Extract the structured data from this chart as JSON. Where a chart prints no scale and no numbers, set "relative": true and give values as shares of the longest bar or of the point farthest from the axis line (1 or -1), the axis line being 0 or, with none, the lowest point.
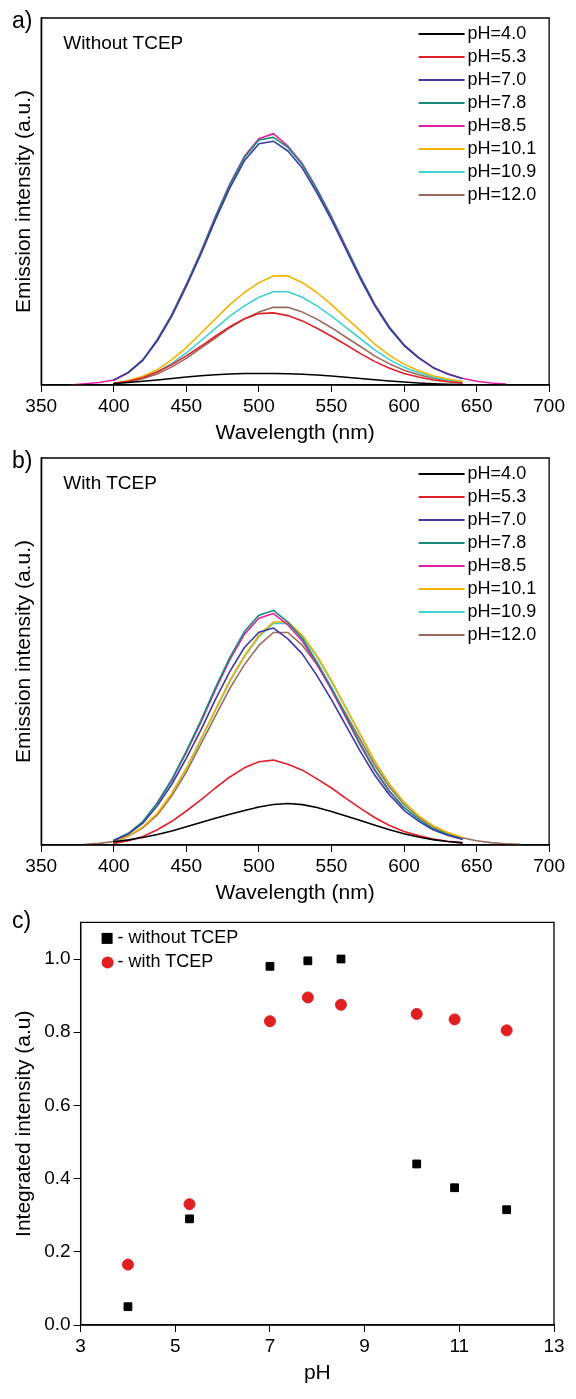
{
  "chart_data": [
    {
      "type": "line",
      "title": "Without TCEP",
      "annotations": [
        "a)"
      ],
      "xlabel": "Wavelength (nm)",
      "ylabel": "Emission intensity (a.u.)",
      "relative": true,
      "legend": "top right",
      "marker": "none",
      "line_style": "solid",
      "grid": false,
      "xlim": [
        350,
        700
      ],
      "xticks": [
        350,
        400,
        450,
        500,
        550,
        600,
        650,
        700
      ],
      "x": [
        370,
        380,
        390,
        400,
        410,
        420,
        430,
        440,
        450,
        460,
        470,
        480,
        490,
        500,
        510,
        520,
        530,
        540,
        550,
        560,
        570,
        580,
        590,
        600,
        610,
        620,
        630,
        640,
        650,
        660,
        670
      ],
      "series": [
        {
          "name": "pH=4.0",
          "color": "#000000",
          "values": [
            null,
            null,
            null,
            0.006,
            0.01,
            0.015,
            0.02,
            0.026,
            0.032,
            0.037,
            0.041,
            0.044,
            0.046,
            0.046,
            0.046,
            0.045,
            0.043,
            0.04,
            0.036,
            0.031,
            0.026,
            0.021,
            0.016,
            0.012,
            0.008,
            0.005,
            0.003,
            0.002,
            null,
            null,
            null
          ]
        },
        {
          "name": "pH=5.3",
          "color": "#e0202a",
          "values": [
            null,
            null,
            null,
            0.006,
            0.015,
            0.029,
            0.052,
            0.081,
            0.116,
            0.154,
            0.194,
            0.232,
            0.264,
            0.284,
            0.287,
            0.276,
            0.255,
            0.226,
            0.194,
            0.16,
            0.125,
            0.093,
            0.067,
            0.046,
            0.032,
            0.02,
            0.013,
            0.008,
            null,
            null,
            null
          ]
        },
        {
          "name": "pH=7.0",
          "color": "#3a3aa0",
          "values": [
            null,
            null,
            null,
            0.02,
            0.049,
            0.098,
            0.176,
            0.274,
            0.392,
            0.519,
            0.657,
            0.784,
            0.892,
            0.96,
            0.97,
            0.931,
            0.862,
            0.764,
            0.657,
            0.539,
            0.421,
            0.314,
            0.225,
            0.157,
            0.108,
            0.069,
            0.044,
            0.026,
            null,
            null,
            null
          ]
        },
        {
          "name": "pH=7.8",
          "color": "#1a8a7a",
          "values": [
            null,
            null,
            null,
            null,
            0.05,
            0.1,
            0.179,
            0.279,
            0.398,
            0.527,
            0.667,
            0.796,
            0.905,
            0.975,
            0.985,
            0.945,
            0.876,
            0.776,
            0.667,
            0.547,
            0.428,
            0.318,
            0.229,
            0.159,
            0.109,
            null,
            null,
            null,
            null,
            null,
            null
          ]
        },
        {
          "name": "pH=8.5",
          "color": "#e020a0",
          "values": [
            0,
            0.005,
            0.01,
            0.02,
            0.05,
            0.1,
            0.18,
            0.28,
            0.4,
            0.53,
            0.67,
            0.8,
            0.91,
            0.98,
            1.0,
            0.95,
            0.88,
            0.78,
            0.67,
            0.55,
            0.43,
            0.32,
            0.23,
            0.16,
            0.11,
            0.07,
            0.045,
            0.027,
            0.015,
            0.008,
            0.004
          ]
        },
        {
          "name": "pH=10.1",
          "color": "#f0b400",
          "values": [
            null,
            null,
            null,
            0.007,
            0.018,
            0.035,
            0.061,
            0.101,
            0.149,
            0.206,
            0.263,
            0.32,
            0.368,
            0.407,
            0.434,
            0.434,
            0.407,
            0.368,
            0.32,
            0.267,
            0.215,
            0.162,
            0.118,
            0.083,
            0.057,
            0.037,
            0.024,
            0.015,
            null,
            null,
            null
          ]
        },
        {
          "name": "pH=10.9",
          "color": "#40d0d0",
          "values": [
            null,
            null,
            null,
            null,
            null,
            0.03,
            0.053,
            0.086,
            0.128,
            0.176,
            0.225,
            0.274,
            0.315,
            0.349,
            0.371,
            0.371,
            0.349,
            0.315,
            0.274,
            0.229,
            0.184,
            0.139,
            0.101,
            0.071,
            0.049,
            0.032,
            0.021,
            0.013,
            null,
            null,
            null
          ]
        },
        {
          "name": "pH=12.0",
          "color": "#9a6a5a",
          "values": [
            null,
            null,
            null,
            0.005,
            0.012,
            0.025,
            0.044,
            0.072,
            0.106,
            0.147,
            0.187,
            0.228,
            0.262,
            0.29,
            0.309,
            0.309,
            0.29,
            0.262,
            0.228,
            0.19,
            0.153,
            0.115,
            0.084,
            0.059,
            0.041,
            0.027,
            0.017,
            0.011,
            null,
            null,
            null
          ]
        }
      ]
    },
    {
      "type": "line",
      "title": "With TCEP",
      "annotations": [
        "b)"
      ],
      "xlabel": "Wavelength (nm)",
      "ylabel": "Emission intensity (a.u.)",
      "relative": true,
      "legend": "top right",
      "marker": "none",
      "line_style": "solid",
      "grid": false,
      "xlim": [
        350,
        700
      ],
      "xticks": [
        350,
        400,
        450,
        500,
        550,
        600,
        650,
        700
      ],
      "x": [
        380,
        390,
        400,
        410,
        420,
        430,
        440,
        450,
        460,
        470,
        480,
        490,
        500,
        510,
        520,
        530,
        540,
        550,
        560,
        570,
        580,
        590,
        600,
        610,
        620,
        630,
        640,
        650,
        660,
        670,
        680
      ],
      "series": [
        {
          "name": "pH=4.0",
          "color": "#000000",
          "values": [
            null,
            null,
            0.014,
            0.022,
            0.032,
            0.045,
            0.06,
            0.078,
            0.096,
            0.114,
            0.131,
            0.147,
            0.162,
            0.173,
            0.177,
            0.172,
            0.16,
            0.143,
            0.124,
            0.104,
            0.084,
            0.065,
            0.048,
            0.034,
            0.023,
            0.015,
            0.009,
            null,
            null,
            null,
            null
          ]
        },
        {
          "name": "pH=5.3",
          "color": "#e0202a",
          "values": [
            null,
            null,
            0.007,
            0.018,
            0.036,
            0.065,
            0.101,
            0.145,
            0.192,
            0.243,
            0.29,
            0.329,
            0.355,
            0.362,
            0.344,
            0.319,
            0.282,
            0.243,
            0.199,
            0.156,
            0.116,
            0.083,
            0.058,
            0.04,
            0.025,
            0.016,
            0.01,
            null,
            null,
            null,
            null
          ]
        },
        {
          "name": "pH=7.0",
          "color": "#3a3aa0",
          "values": [
            null,
            null,
            0.019,
            0.046,
            0.093,
            0.167,
            0.259,
            0.37,
            0.49,
            0.62,
            0.74,
            0.842,
            0.907,
            0.925,
            0.879,
            0.814,
            0.722,
            0.62,
            0.509,
            0.398,
            0.296,
            0.213,
            0.148,
            0.102,
            0.065,
            0.042,
            0.025,
            null,
            null,
            null,
            null
          ]
        },
        {
          "name": "pH=7.8",
          "color": "#1a8a7a",
          "values": [
            null,
            null,
            0.02,
            0.05,
            0.1,
            0.18,
            0.28,
            0.4,
            0.53,
            0.67,
            0.8,
            0.91,
            0.98,
            1.0,
            0.95,
            0.88,
            0.78,
            0.67,
            0.55,
            0.43,
            0.32,
            0.23,
            0.16,
            0.11,
            0.07,
            0.045,
            0.027,
            null,
            null,
            null,
            null
          ]
        },
        {
          "name": "pH=8.5",
          "color": "#e020a0",
          "values": [
            null,
            null,
            null,
            null,
            null,
            0.178,
            0.276,
            0.395,
            0.523,
            0.661,
            0.79,
            0.898,
            0.967,
            0.987,
            0.938,
            0.869,
            0.77,
            0.661,
            0.543,
            0.424,
            0.316,
            0.227,
            0.158,
            null,
            null,
            null,
            null,
            null,
            null,
            null,
            null
          ]
        },
        {
          "name": "pH=10.1",
          "color": "#f0b400",
          "values": [
            null,
            null,
            0.015,
            0.038,
            0.077,
            0.135,
            0.221,
            0.327,
            0.452,
            0.577,
            0.702,
            0.807,
            0.894,
            0.951,
            0.951,
            0.894,
            0.807,
            0.702,
            0.586,
            0.471,
            0.356,
            0.259,
            0.183,
            0.125,
            0.082,
            0.053,
            0.033,
            null,
            null,
            null,
            null
          ]
        },
        {
          "name": "pH=10.9",
          "color": "#40d0d0",
          "values": [
            null,
            null,
            null,
            null,
            null,
            null,
            0.22,
            0.325,
            0.449,
            0.573,
            0.697,
            0.802,
            0.888,
            0.945,
            0.945,
            0.888,
            0.802,
            0.697,
            0.583,
            0.468,
            0.353,
            0.258,
            0.181,
            0.124,
            null,
            null,
            null,
            null,
            null,
            null,
            null
          ]
        },
        {
          "name": "pH=12.0",
          "color": "#9a6a5a",
          "values": [
            0.003,
            0.007,
            0.015,
            0.037,
            0.073,
            0.128,
            0.21,
            0.311,
            0.43,
            0.549,
            0.668,
            0.769,
            0.851,
            0.906,
            0.906,
            0.851,
            0.769,
            0.668,
            0.558,
            0.448,
            0.339,
            0.247,
            0.174,
            0.119,
            0.078,
            0.05,
            0.031,
            0.018,
            0.01,
            0.005,
            0.003
          ]
        }
      ]
    },
    {
      "type": "scatter",
      "annotations": [
        "c)"
      ],
      "xlabel": "pH",
      "ylabel": "Integrated intensity (a.u)",
      "legend": "top left",
      "grid": false,
      "xlim": [
        3,
        13
      ],
      "xticks": [
        3,
        5,
        7,
        9,
        11,
        13
      ],
      "ylim": [
        0,
        1.1
      ],
      "yticks": [
        {
          "value": 0,
          "label": "0.0"
        },
        {
          "value": 0.2,
          "label": "0.2"
        },
        {
          "value": 0.4,
          "label": "0.4"
        },
        {
          "value": 0.6,
          "label": "0.6"
        },
        {
          "value": 0.8,
          "label": "0.8"
        },
        {
          "value": 1,
          "label": "1.0"
        }
      ],
      "x": [
        4,
        5.3,
        7,
        7.8,
        8.5,
        10.1,
        10.9,
        12
      ],
      "series": [
        {
          "name": "- without TCEP",
          "color": "#000000",
          "marker": "square",
          "values": [
            0.05,
            0.29,
            0.98,
            0.995,
            1.0,
            0.44,
            0.375,
            0.315
          ]
        },
        {
          "name": "- with TCEP",
          "color": "#e02020",
          "marker": "circle",
          "values": [
            0.165,
            0.33,
            0.83,
            0.895,
            0.875,
            0.85,
            0.835,
            0.805
          ]
        }
      ]
    }
  ]
}
